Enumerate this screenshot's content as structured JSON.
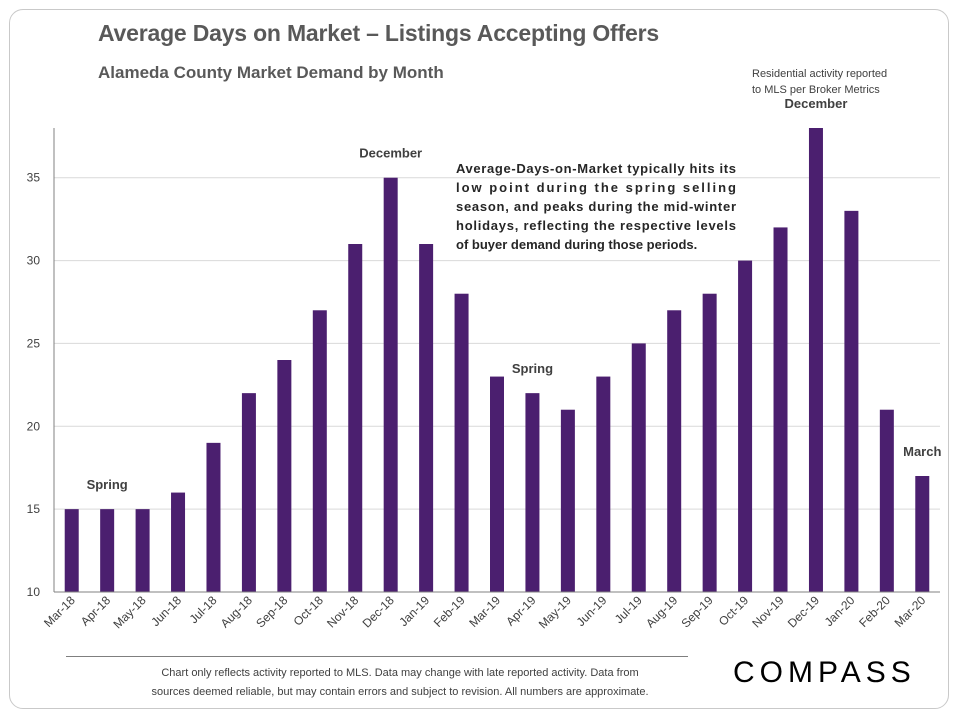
{
  "header": {
    "title": "Average Days on Market – Listings Accepting Offers",
    "subtitle": "Alameda County Market Demand by Month",
    "source_note_line1": "Residential activity reported",
    "source_note_line2": "to MLS per Broker Metrics"
  },
  "chart_data": {
    "type": "bar",
    "title": "Average Days on Market – Listings Accepting Offers",
    "subtitle": "Alameda County Market Demand by Month",
    "xlabel": "",
    "ylabel": "",
    "ylim": [
      10,
      38
    ],
    "yticks": [
      10,
      15,
      20,
      25,
      30,
      35
    ],
    "grid": true,
    "bar_color": "#4b1f6f",
    "categories": [
      "Mar-18",
      "Apr-18",
      "May-18",
      "Jun-18",
      "Jul-18",
      "Aug-18",
      "Sep-18",
      "Oct-18",
      "Nov-18",
      "Dec-18",
      "Jan-19",
      "Feb-19",
      "Mar-19",
      "Apr-19",
      "May-19",
      "Jun-19",
      "Jul-19",
      "Aug-19",
      "Sep-19",
      "Oct-19",
      "Nov-19",
      "Dec-19",
      "Jan-20",
      "Feb-20",
      "Mar-20"
    ],
    "values": [
      15,
      15,
      15,
      16,
      19,
      22,
      24,
      27,
      31,
      35,
      31,
      28,
      23,
      22,
      21,
      23,
      25,
      27,
      28,
      30,
      32,
      38,
      33,
      21,
      17
    ],
    "annotations": [
      {
        "text": "Spring",
        "category": "Apr-18"
      },
      {
        "text": "December",
        "category": "Dec-18"
      },
      {
        "text": "Spring",
        "category": "Apr-19"
      },
      {
        "text": "December",
        "category": "Dec-19"
      },
      {
        "text": "March",
        "category": "Mar-20"
      }
    ],
    "note_lines": [
      "Average-Days-on-Market typically hits its",
      "low point during the spring selling",
      "season, and peaks during the mid-winter",
      "holidays, reflecting the respective levels",
      "of buyer demand during those periods."
    ]
  },
  "footer": {
    "disclaimer_line1": "Chart only reflects activity reported to MLS. Data may change with late reported activity.  Data from",
    "disclaimer_line2": "sources deemed reliable, but may contain errors and subject to revision. All numbers are approximate.",
    "logo": "COMPASS"
  }
}
